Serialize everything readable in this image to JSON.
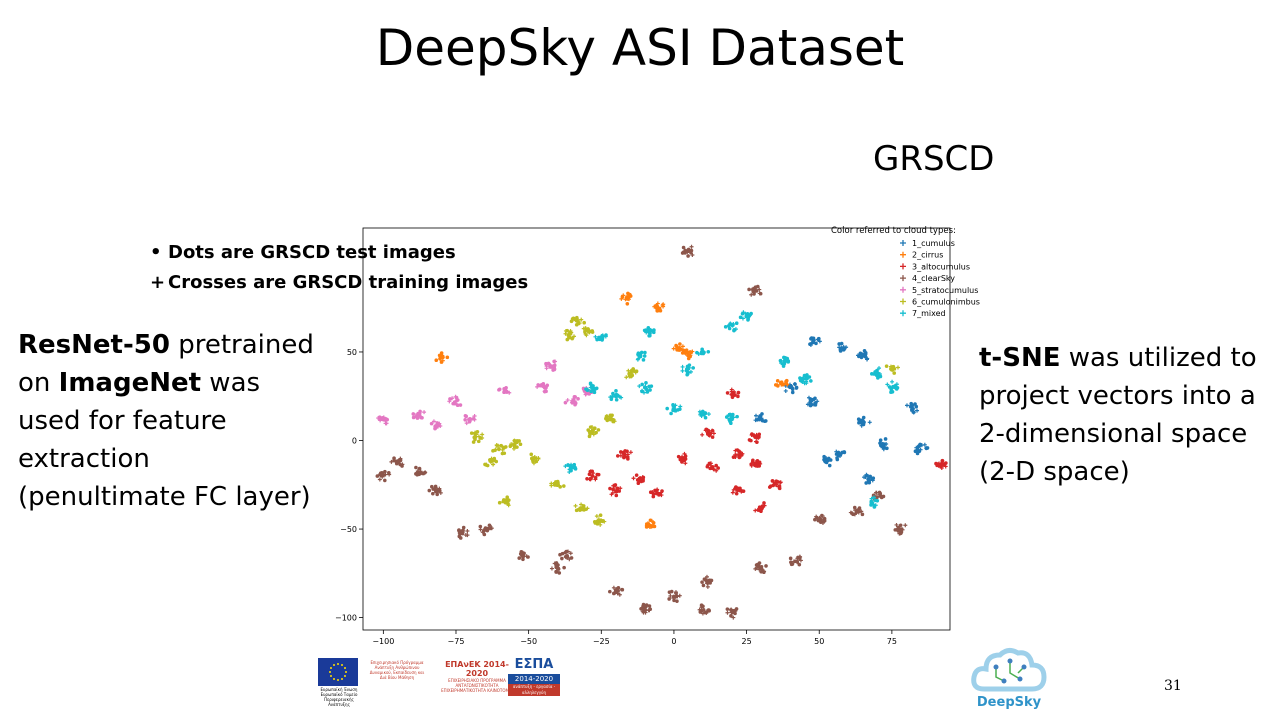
{
  "slide": {
    "title": "DeepSky ASI Dataset",
    "subtitle": "GRSCD",
    "left": {
      "b1": "ResNet-50",
      "t1": " pretrained on ",
      "b2": "ImageNet",
      "t2": " was used for feature extraction (penultimate FC layer)"
    },
    "right": {
      "b1": "t-SNE",
      "t1": " was utilized to project vectors into a 2-dimensional space (2-D space)"
    },
    "notes": [
      {
        "symbol": "•",
        "text": "Dots are GRSCD test images"
      },
      {
        "symbol": "+",
        "text": "Crosses are GRSCD training images"
      }
    ],
    "page_number": "31"
  },
  "footer": {
    "eu_caption": "Ευρωπαϊκή Ένωση Ευρωπαϊκό Ταμείο Περιφερειακής Ανάπτυξης",
    "program_text": "Επιχειρησιακό Πρόγραμμα Ανάπτυξη Ανθρώπινου Δυναμικού, Εκπαίδευση και Διά Βίου Μάθηση",
    "epanek_title": "ΕΠΑνΕΚ 2014-2020",
    "epanek_sub": "ΕΠΙΧΕΙΡΗΣΙΑΚΟ ΠΡΟΓΡΑΜΜΑ ΑΝΤΑΓΩΝΙΣΤΙΚΟΤΗΤΑ ΕΠΙΧΕΙΡΗΜΑΤΙΚΟΤΗΤΑ ΚΑΙΝΟΤΟΜΙΑ",
    "espa": "ΕΣΠΑ",
    "espa_years": "2014-2020",
    "espa_tagline": "ανάπτυξη - εργασία - αλληλεγγύη",
    "deepsky_logo": "DeepSky"
  },
  "colors": {
    "1_cumulus": "#1f77b4",
    "2_cirrus": "#ff7f0e",
    "3_altocumulus": "#d62728",
    "4_clearSky": "#8c564b",
    "5_stratocumulus": "#e377c2",
    "6_cumulonimbus": "#bcbd22",
    "7_mixed": "#17becf"
  },
  "chart_data": {
    "type": "scatter",
    "title": "",
    "xlabel": "",
    "ylabel": "",
    "xlim": [
      -107,
      95
    ],
    "ylim": [
      -107,
      120
    ],
    "xticks": [
      -100,
      -75,
      -50,
      -25,
      0,
      25,
      50,
      75
    ],
    "yticks": [
      -100,
      -50,
      0,
      50
    ],
    "grid": false,
    "legend_title": "Color referred to cloud types:",
    "legend_position": "top-right",
    "series": [
      {
        "name": "1_cumulus",
        "color": "#1f77b4",
        "clusters": [
          {
            "x": 48,
            "y": 56
          },
          {
            "x": 58,
            "y": 52
          },
          {
            "x": 65,
            "y": 48
          },
          {
            "x": 40,
            "y": 30
          },
          {
            "x": 47,
            "y": 22
          },
          {
            "x": 65,
            "y": 10
          },
          {
            "x": 82,
            "y": 18
          },
          {
            "x": 72,
            "y": -2
          },
          {
            "x": 85,
            "y": -5
          },
          {
            "x": 57,
            "y": -8
          },
          {
            "x": 67,
            "y": -22
          },
          {
            "x": 52,
            "y": -12
          },
          {
            "x": 30,
            "y": 12
          }
        ]
      },
      {
        "name": "2_cirrus",
        "color": "#ff7f0e",
        "clusters": [
          {
            "x": -80,
            "y": 47
          },
          {
            "x": -16,
            "y": 80
          },
          {
            "x": -5,
            "y": 75
          },
          {
            "x": 2,
            "y": 52
          },
          {
            "x": 5,
            "y": 48
          },
          {
            "x": -8,
            "y": -48
          },
          {
            "x": 37,
            "y": 32
          }
        ]
      },
      {
        "name": "3_altocumulus",
        "color": "#d62728",
        "clusters": [
          {
            "x": -17,
            "y": -8
          },
          {
            "x": -12,
            "y": -22
          },
          {
            "x": -20,
            "y": -28
          },
          {
            "x": -6,
            "y": -30
          },
          {
            "x": 3,
            "y": -10
          },
          {
            "x": 13,
            "y": -15
          },
          {
            "x": 22,
            "y": -8
          },
          {
            "x": 28,
            "y": -14
          },
          {
            "x": 22,
            "y": -28
          },
          {
            "x": 30,
            "y": -38
          },
          {
            "x": 35,
            "y": -25
          },
          {
            "x": 12,
            "y": 4
          },
          {
            "x": 28,
            "y": 2
          },
          {
            "x": -28,
            "y": -20
          },
          {
            "x": 20,
            "y": 26
          },
          {
            "x": 92,
            "y": -13
          }
        ]
      },
      {
        "name": "4_clearSky",
        "color": "#8c564b",
        "clusters": [
          {
            "x": 5,
            "y": 107
          },
          {
            "x": 28,
            "y": 84
          },
          {
            "x": -95,
            "y": -12
          },
          {
            "x": -100,
            "y": -20
          },
          {
            "x": -88,
            "y": -18
          },
          {
            "x": -82,
            "y": -28
          },
          {
            "x": -73,
            "y": -52
          },
          {
            "x": -65,
            "y": -50
          },
          {
            "x": -52,
            "y": -65
          },
          {
            "x": -37,
            "y": -65
          },
          {
            "x": -20,
            "y": -85
          },
          {
            "x": -10,
            "y": -95
          },
          {
            "x": 0,
            "y": -88
          },
          {
            "x": 12,
            "y": -80
          },
          {
            "x": 30,
            "y": -72
          },
          {
            "x": 42,
            "y": -68
          },
          {
            "x": 20,
            "y": -97
          },
          {
            "x": 10,
            "y": -96
          },
          {
            "x": 50,
            "y": -45
          },
          {
            "x": 63,
            "y": -40
          },
          {
            "x": 78,
            "y": -50
          },
          {
            "x": 70,
            "y": -32
          },
          {
            "x": -40,
            "y": -72
          }
        ]
      },
      {
        "name": "5_stratocumulus",
        "color": "#e377c2",
        "clusters": [
          {
            "x": -88,
            "y": 15
          },
          {
            "x": -75,
            "y": 22
          },
          {
            "x": -82,
            "y": 8
          },
          {
            "x": -70,
            "y": 12
          },
          {
            "x": -58,
            "y": 28
          },
          {
            "x": -45,
            "y": 30
          },
          {
            "x": -42,
            "y": 42
          },
          {
            "x": -35,
            "y": 22
          },
          {
            "x": -30,
            "y": 28
          },
          {
            "x": -100,
            "y": 12
          }
        ]
      },
      {
        "name": "6_cumulonimbus",
        "color": "#bcbd22",
        "clusters": [
          {
            "x": -33,
            "y": 68
          },
          {
            "x": -30,
            "y": 62
          },
          {
            "x": -36,
            "y": 60
          },
          {
            "x": -60,
            "y": -5
          },
          {
            "x": -68,
            "y": 2
          },
          {
            "x": -55,
            "y": -2
          },
          {
            "x": -63,
            "y": -12
          },
          {
            "x": -48,
            "y": -10
          },
          {
            "x": -40,
            "y": -25
          },
          {
            "x": -25,
            "y": -45
          },
          {
            "x": -32,
            "y": -38
          },
          {
            "x": -22,
            "y": 12
          },
          {
            "x": -28,
            "y": 5
          },
          {
            "x": -15,
            "y": 38
          },
          {
            "x": -58,
            "y": -35
          },
          {
            "x": 75,
            "y": 40
          }
        ]
      },
      {
        "name": "7_mixed",
        "color": "#17becf",
        "clusters": [
          {
            "x": -25,
            "y": 58
          },
          {
            "x": -8,
            "y": 62
          },
          {
            "x": -12,
            "y": 48
          },
          {
            "x": -28,
            "y": 30
          },
          {
            "x": -20,
            "y": 25
          },
          {
            "x": -10,
            "y": 30
          },
          {
            "x": 0,
            "y": 18
          },
          {
            "x": 10,
            "y": 15
          },
          {
            "x": 20,
            "y": 12
          },
          {
            "x": 5,
            "y": 40
          },
          {
            "x": 10,
            "y": 50
          },
          {
            "x": 20,
            "y": 65
          },
          {
            "x": 25,
            "y": 70
          },
          {
            "x": 38,
            "y": 45
          },
          {
            "x": 45,
            "y": 35
          },
          {
            "x": 70,
            "y": 38
          },
          {
            "x": 68,
            "y": -35
          },
          {
            "x": 75,
            "y": 30
          },
          {
            "x": -35,
            "y": -15
          }
        ]
      }
    ]
  }
}
